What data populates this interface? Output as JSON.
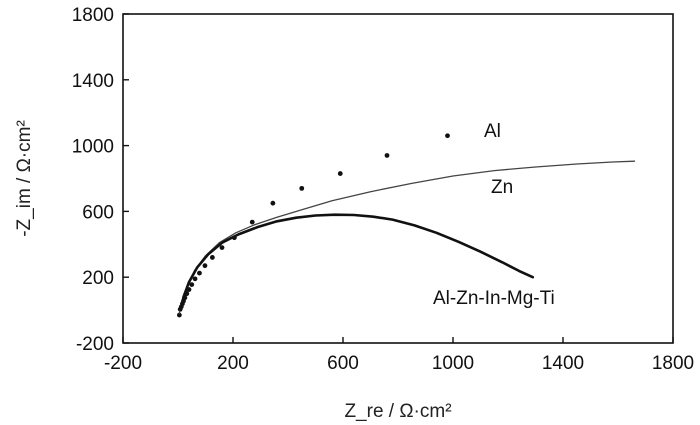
{
  "chart_data": {
    "type": "line",
    "xlabel": "Z_re / Ω·cm²",
    "ylabel": "-Z_im / Ω·cm²",
    "xlim": [
      -200,
      1800
    ],
    "ylim": [
      -200,
      1800
    ],
    "x_ticks": [
      "-200",
      "200",
      "600",
      "1000",
      "1400",
      "1800"
    ],
    "y_ticks": [
      "-200",
      "200",
      "600",
      "1000",
      "1400",
      "1800"
    ],
    "grid": false,
    "legend": "none",
    "series": [
      {
        "name": "Al",
        "style": "markers",
        "x": [
          5,
          8,
          12,
          16,
          20,
          25,
          32,
          40,
          50,
          62,
          78,
          98,
          125,
          160,
          205,
          270,
          345,
          450,
          590,
          760,
          980
        ],
        "y": [
          -30,
          5,
          20,
          38,
          55,
          75,
          100,
          125,
          155,
          190,
          225,
          270,
          320,
          380,
          440,
          535,
          650,
          740,
          830,
          940,
          1060
        ]
      },
      {
        "name": "Zn",
        "style": "thin-line",
        "x": [
          5,
          15,
          30,
          60,
          100,
          150,
          210,
          280,
          360,
          450,
          560,
          700,
          850,
          1000,
          1150,
          1300,
          1450,
          1580,
          1660
        ],
        "y": [
          -20,
          60,
          130,
          240,
          330,
          410,
          470,
          520,
          565,
          610,
          665,
          720,
          770,
          815,
          848,
          870,
          888,
          900,
          905
        ]
      },
      {
        "name": "Al-Zn-In-Mg-Ti",
        "style": "thick-line",
        "x": [
          10,
          20,
          40,
          70,
          110,
          160,
          220,
          290,
          360,
          430,
          500,
          570,
          640,
          710,
          780,
          860,
          940,
          1020,
          1100,
          1180,
          1240,
          1290
        ],
        "y": [
          0,
          80,
          170,
          260,
          340,
          410,
          460,
          505,
          540,
          562,
          575,
          580,
          578,
          568,
          550,
          515,
          470,
          415,
          355,
          290,
          238,
          200
        ]
      }
    ],
    "annotations": [
      "Al",
      "Zn",
      "Al-Zn-In-Mg-Ti"
    ]
  }
}
